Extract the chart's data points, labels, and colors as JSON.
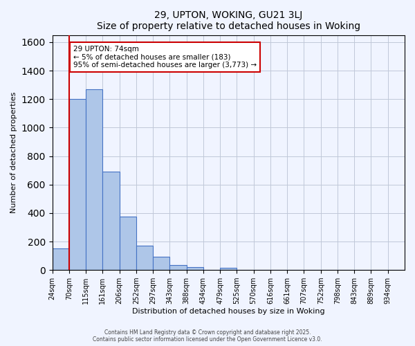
{
  "title": "29, UPTON, WOKING, GU21 3LJ",
  "subtitle": "Size of property relative to detached houses in Woking",
  "xlabel": "Distribution of detached houses by size in Woking",
  "ylabel": "Number of detached properties",
  "bin_labels": [
    "24sqm",
    "70sqm",
    "115sqm",
    "161sqm",
    "206sqm",
    "252sqm",
    "297sqm",
    "343sqm",
    "388sqm",
    "434sqm",
    "479sqm",
    "525sqm",
    "570sqm",
    "616sqm",
    "661sqm",
    "707sqm",
    "752sqm",
    "798sqm",
    "843sqm",
    "889sqm",
    "934sqm"
  ],
  "bar_values": [
    150,
    1200,
    1270,
    690,
    375,
    170,
    95,
    35,
    20,
    0,
    15,
    0,
    0,
    0,
    0,
    0,
    0,
    0,
    0,
    0,
    0
  ],
  "bar_color": "#aec6e8",
  "bar_edge_color": "#4472c4",
  "vline_x": 1,
  "vline_color": "#cc0000",
  "annotation_title": "29 UPTON: 74sqm",
  "annotation_line1": "← 5% of detached houses are smaller (183)",
  "annotation_line2": "95% of semi-detached houses are larger (3,773) →",
  "annotation_box_edge": "#cc0000",
  "annotation_box_face": "white",
  "ylim": [
    0,
    1650
  ],
  "footnote1": "Contains HM Land Registry data © Crown copyright and database right 2025.",
  "footnote2": "Contains public sector information licensed under the Open Government Licence v3.0.",
  "background_color": "#f0f4ff",
  "grid_color": "#c0c8d8"
}
